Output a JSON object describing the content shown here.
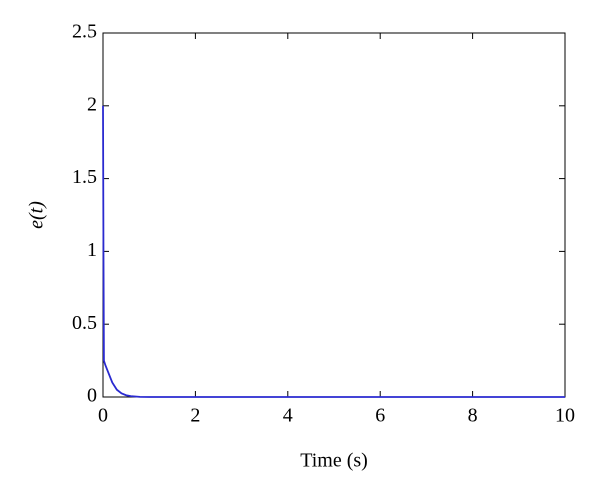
{
  "chart_data": {
    "type": "line",
    "x_label": "Time (s)",
    "y_label": "e(t)",
    "x": [
      0,
      0.01,
      0.02,
      0.05,
      0.1,
      0.2,
      0.3,
      0.4,
      0.5,
      0.6,
      0.8,
      1,
      2,
      4,
      6,
      8,
      10
    ],
    "values": [
      2.0,
      1.0,
      0.25,
      0.22,
      0.18,
      0.1,
      0.05,
      0.025,
      0.012,
      0.006,
      0.001,
      0,
      0,
      0,
      0,
      0,
      0
    ],
    "color": "#2a2ad0",
    "xlim": [
      0,
      10
    ],
    "xticks": [
      0,
      2,
      4,
      6,
      8,
      10
    ],
    "ylim": [
      0,
      2.5
    ],
    "yticks": [
      0,
      0.5,
      1,
      1.5,
      2,
      2.5
    ],
    "grid": false
  }
}
